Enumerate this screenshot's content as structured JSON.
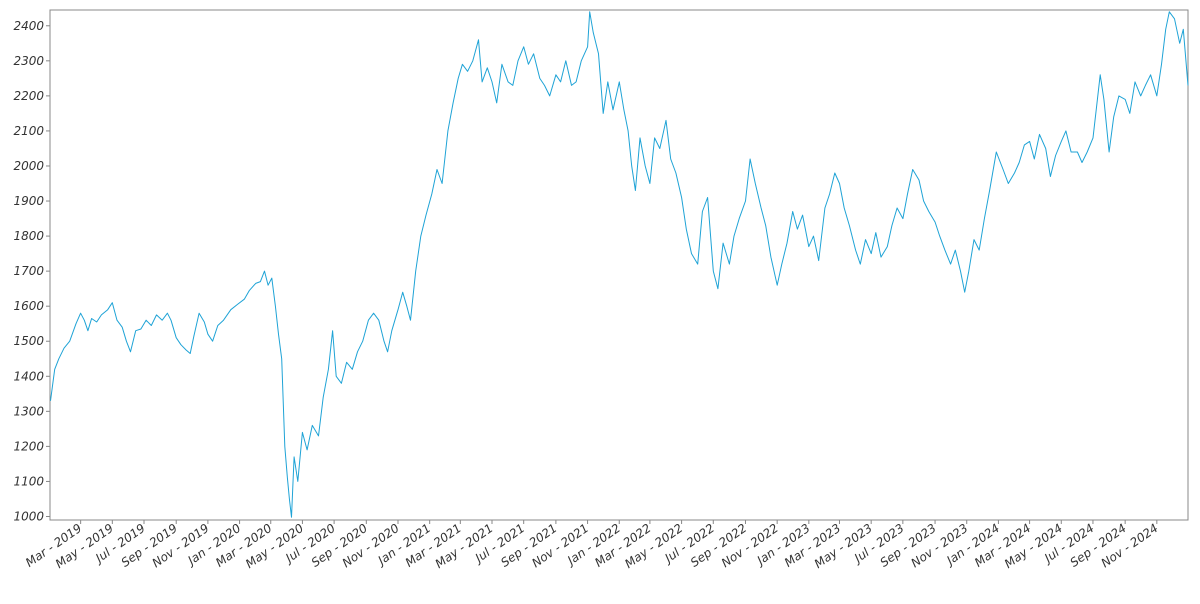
{
  "chart_data": {
    "type": "line",
    "title": "",
    "xlabel": "",
    "ylabel": "",
    "grid": false,
    "legend": "none",
    "colors": {
      "line": "#1fa3d6",
      "axis": "#888888",
      "text": "#333333"
    },
    "ylim": [
      990,
      2445
    ],
    "xlim": [
      "2019-01-01",
      "2024-12-31"
    ],
    "y_ticks": [
      1000,
      1100,
      1200,
      1300,
      1400,
      1500,
      1600,
      1700,
      1800,
      1900,
      2000,
      2100,
      2200,
      2300,
      2400
    ],
    "x_ticks": [
      {
        "date": "2019-03-01",
        "label": "Mar - 2019"
      },
      {
        "date": "2019-05-01",
        "label": "May - 2019"
      },
      {
        "date": "2019-07-01",
        "label": "Jul - 2019"
      },
      {
        "date": "2019-09-01",
        "label": "Sep - 2019"
      },
      {
        "date": "2019-11-01",
        "label": "Nov - 2019"
      },
      {
        "date": "2020-01-01",
        "label": "Jan - 2020"
      },
      {
        "date": "2020-03-01",
        "label": "Mar - 2020"
      },
      {
        "date": "2020-05-01",
        "label": "May - 2020"
      },
      {
        "date": "2020-07-01",
        "label": "Jul - 2020"
      },
      {
        "date": "2020-09-01",
        "label": "Sep - 2020"
      },
      {
        "date": "2020-11-01",
        "label": "Nov - 2020"
      },
      {
        "date": "2021-01-01",
        "label": "Jan - 2021"
      },
      {
        "date": "2021-03-01",
        "label": "Mar - 2021"
      },
      {
        "date": "2021-05-01",
        "label": "May - 2021"
      },
      {
        "date": "2021-07-01",
        "label": "Jul - 2021"
      },
      {
        "date": "2021-09-01",
        "label": "Sep - 2021"
      },
      {
        "date": "2021-11-01",
        "label": "Nov - 2021"
      },
      {
        "date": "2022-01-01",
        "label": "Jan - 2022"
      },
      {
        "date": "2022-03-01",
        "label": "Mar - 2022"
      },
      {
        "date": "2022-05-01",
        "label": "May - 2022"
      },
      {
        "date": "2022-07-01",
        "label": "Jul - 2022"
      },
      {
        "date": "2022-09-01",
        "label": "Sep - 2022"
      },
      {
        "date": "2022-11-01",
        "label": "Nov - 2022"
      },
      {
        "date": "2023-01-01",
        "label": "Jan - 2023"
      },
      {
        "date": "2023-03-01",
        "label": "Mar - 2023"
      },
      {
        "date": "2023-05-01",
        "label": "May - 2023"
      },
      {
        "date": "2023-07-01",
        "label": "Jul - 2023"
      },
      {
        "date": "2023-09-01",
        "label": "Sep - 2023"
      },
      {
        "date": "2023-11-01",
        "label": "Nov - 2023"
      },
      {
        "date": "2024-01-01",
        "label": "Jan - 2024"
      },
      {
        "date": "2024-03-01",
        "label": "Mar - 2024"
      },
      {
        "date": "2024-05-01",
        "label": "May - 2024"
      },
      {
        "date": "2024-07-01",
        "label": "Jul - 2024"
      },
      {
        "date": "2024-09-01",
        "label": "Sep - 2024"
      },
      {
        "date": "2024-11-01",
        "label": "Nov - 2024"
      }
    ],
    "series": [
      {
        "points": [
          [
            "2019-01-02",
            1330
          ],
          [
            "2019-01-10",
            1420
          ],
          [
            "2019-01-18",
            1450
          ],
          [
            "2019-01-28",
            1480
          ],
          [
            "2019-02-08",
            1500
          ],
          [
            "2019-02-20",
            1550
          ],
          [
            "2019-03-01",
            1580
          ],
          [
            "2019-03-08",
            1560
          ],
          [
            "2019-03-15",
            1530
          ],
          [
            "2019-03-22",
            1565
          ],
          [
            "2019-04-01",
            1555
          ],
          [
            "2019-04-10",
            1575
          ],
          [
            "2019-04-22",
            1590
          ],
          [
            "2019-05-01",
            1610
          ],
          [
            "2019-05-10",
            1560
          ],
          [
            "2019-05-20",
            1540
          ],
          [
            "2019-05-28",
            1500
          ],
          [
            "2019-06-05",
            1470
          ],
          [
            "2019-06-15",
            1530
          ],
          [
            "2019-06-25",
            1535
          ],
          [
            "2019-07-05",
            1560
          ],
          [
            "2019-07-15",
            1545
          ],
          [
            "2019-07-25",
            1575
          ],
          [
            "2019-08-05",
            1560
          ],
          [
            "2019-08-15",
            1580
          ],
          [
            "2019-08-22",
            1560
          ],
          [
            "2019-09-01",
            1510
          ],
          [
            "2019-09-10",
            1490
          ],
          [
            "2019-09-20",
            1475
          ],
          [
            "2019-09-28",
            1465
          ],
          [
            "2019-10-05",
            1515
          ],
          [
            "2019-10-15",
            1580
          ],
          [
            "2019-10-25",
            1555
          ],
          [
            "2019-11-01",
            1520
          ],
          [
            "2019-11-10",
            1500
          ],
          [
            "2019-11-20",
            1545
          ],
          [
            "2019-12-01",
            1560
          ],
          [
            "2019-12-15",
            1590
          ],
          [
            "2019-12-28",
            1605
          ],
          [
            "2020-01-10",
            1620
          ],
          [
            "2020-01-20",
            1645
          ],
          [
            "2020-02-01",
            1665
          ],
          [
            "2020-02-10",
            1670
          ],
          [
            "2020-02-18",
            1700
          ],
          [
            "2020-02-25",
            1660
          ],
          [
            "2020-03-03",
            1680
          ],
          [
            "2020-03-10",
            1600
          ],
          [
            "2020-03-16",
            1520
          ],
          [
            "2020-03-22",
            1450
          ],
          [
            "2020-03-28",
            1200
          ],
          [
            "2020-04-02",
            1110
          ],
          [
            "2020-04-06",
            1050
          ],
          [
            "2020-04-10",
            998
          ],
          [
            "2020-04-15",
            1170
          ],
          [
            "2020-04-22",
            1100
          ],
          [
            "2020-05-01",
            1240
          ],
          [
            "2020-05-10",
            1190
          ],
          [
            "2020-05-20",
            1260
          ],
          [
            "2020-06-01",
            1230
          ],
          [
            "2020-06-10",
            1340
          ],
          [
            "2020-06-20",
            1420
          ],
          [
            "2020-06-28",
            1530
          ],
          [
            "2020-07-05",
            1400
          ],
          [
            "2020-07-15",
            1380
          ],
          [
            "2020-07-25",
            1440
          ],
          [
            "2020-08-05",
            1420
          ],
          [
            "2020-08-15",
            1470
          ],
          [
            "2020-08-25",
            1500
          ],
          [
            "2020-09-05",
            1560
          ],
          [
            "2020-09-15",
            1580
          ],
          [
            "2020-09-25",
            1560
          ],
          [
            "2020-10-05",
            1500
          ],
          [
            "2020-10-12",
            1470
          ],
          [
            "2020-10-20",
            1530
          ],
          [
            "2020-11-01",
            1590
          ],
          [
            "2020-11-10",
            1640
          ],
          [
            "2020-11-18",
            1600
          ],
          [
            "2020-11-25",
            1560
          ],
          [
            "2020-12-05",
            1700
          ],
          [
            "2020-12-15",
            1800
          ],
          [
            "2020-12-25",
            1860
          ],
          [
            "2021-01-05",
            1920
          ],
          [
            "2021-01-15",
            1990
          ],
          [
            "2021-01-25",
            1950
          ],
          [
            "2021-02-05",
            2100
          ],
          [
            "2021-02-15",
            2180
          ],
          [
            "2021-02-25",
            2250
          ],
          [
            "2021-03-05",
            2290
          ],
          [
            "2021-03-15",
            2270
          ],
          [
            "2021-03-25",
            2300
          ],
          [
            "2021-04-05",
            2360
          ],
          [
            "2021-04-12",
            2240
          ],
          [
            "2021-04-22",
            2280
          ],
          [
            "2021-05-01",
            2240
          ],
          [
            "2021-05-10",
            2180
          ],
          [
            "2021-05-20",
            2290
          ],
          [
            "2021-06-01",
            2240
          ],
          [
            "2021-06-10",
            2230
          ],
          [
            "2021-06-20",
            2300
          ],
          [
            "2021-07-01",
            2340
          ],
          [
            "2021-07-10",
            2290
          ],
          [
            "2021-07-20",
            2320
          ],
          [
            "2021-08-01",
            2250
          ],
          [
            "2021-08-10",
            2230
          ],
          [
            "2021-08-20",
            2200
          ],
          [
            "2021-09-01",
            2260
          ],
          [
            "2021-09-10",
            2240
          ],
          [
            "2021-09-20",
            2300
          ],
          [
            "2021-10-01",
            2230
          ],
          [
            "2021-10-10",
            2240
          ],
          [
            "2021-10-20",
            2300
          ],
          [
            "2021-11-01",
            2340
          ],
          [
            "2021-11-05",
            2440
          ],
          [
            "2021-11-12",
            2380
          ],
          [
            "2021-11-22",
            2320
          ],
          [
            "2021-12-01",
            2150
          ],
          [
            "2021-12-10",
            2240
          ],
          [
            "2021-12-20",
            2160
          ],
          [
            "2022-01-01",
            2240
          ],
          [
            "2022-01-10",
            2160
          ],
          [
            "2022-01-18",
            2100
          ],
          [
            "2022-01-25",
            2000
          ],
          [
            "2022-02-01",
            1930
          ],
          [
            "2022-02-10",
            2080
          ],
          [
            "2022-02-20",
            2000
          ],
          [
            "2022-03-01",
            1950
          ],
          [
            "2022-03-10",
            2080
          ],
          [
            "2022-03-20",
            2050
          ],
          [
            "2022-04-01",
            2130
          ],
          [
            "2022-04-10",
            2020
          ],
          [
            "2022-04-20",
            1980
          ],
          [
            "2022-05-01",
            1910
          ],
          [
            "2022-05-10",
            1820
          ],
          [
            "2022-05-20",
            1750
          ],
          [
            "2022-06-01",
            1720
          ],
          [
            "2022-06-10",
            1870
          ],
          [
            "2022-06-20",
            1910
          ],
          [
            "2022-07-01",
            1700
          ],
          [
            "2022-07-10",
            1650
          ],
          [
            "2022-07-20",
            1780
          ],
          [
            "2022-08-01",
            1720
          ],
          [
            "2022-08-10",
            1800
          ],
          [
            "2022-08-20",
            1850
          ],
          [
            "2022-09-01",
            1900
          ],
          [
            "2022-09-10",
            2020
          ],
          [
            "2022-09-20",
            1950
          ],
          [
            "2022-10-01",
            1880
          ],
          [
            "2022-10-10",
            1830
          ],
          [
            "2022-10-20",
            1740
          ],
          [
            "2022-11-01",
            1660
          ],
          [
            "2022-11-10",
            1720
          ],
          [
            "2022-11-20",
            1780
          ],
          [
            "2022-12-01",
            1870
          ],
          [
            "2022-12-10",
            1820
          ],
          [
            "2022-12-20",
            1860
          ],
          [
            "2023-01-01",
            1770
          ],
          [
            "2023-01-10",
            1800
          ],
          [
            "2023-01-20",
            1730
          ],
          [
            "2023-02-01",
            1880
          ],
          [
            "2023-02-10",
            1920
          ],
          [
            "2023-02-20",
            1980
          ],
          [
            "2023-03-01",
            1950
          ],
          [
            "2023-03-10",
            1880
          ],
          [
            "2023-03-20",
            1830
          ],
          [
            "2023-04-01",
            1760
          ],
          [
            "2023-04-10",
            1720
          ],
          [
            "2023-04-20",
            1790
          ],
          [
            "2023-05-01",
            1750
          ],
          [
            "2023-05-10",
            1810
          ],
          [
            "2023-05-20",
            1740
          ],
          [
            "2023-06-01",
            1770
          ],
          [
            "2023-06-10",
            1830
          ],
          [
            "2023-06-20",
            1880
          ],
          [
            "2023-07-01",
            1850
          ],
          [
            "2023-07-10",
            1920
          ],
          [
            "2023-07-20",
            1990
          ],
          [
            "2023-08-01",
            1960
          ],
          [
            "2023-08-10",
            1900
          ],
          [
            "2023-08-20",
            1870
          ],
          [
            "2023-09-01",
            1840
          ],
          [
            "2023-09-10",
            1800
          ],
          [
            "2023-09-20",
            1760
          ],
          [
            "2023-10-01",
            1720
          ],
          [
            "2023-10-10",
            1760
          ],
          [
            "2023-10-20",
            1700
          ],
          [
            "2023-10-28",
            1640
          ],
          [
            "2023-11-05",
            1700
          ],
          [
            "2023-11-15",
            1790
          ],
          [
            "2023-11-25",
            1760
          ],
          [
            "2023-12-05",
            1850
          ],
          [
            "2023-12-15",
            1930
          ],
          [
            "2023-12-28",
            2040
          ],
          [
            "2024-01-10",
            1990
          ],
          [
            "2024-01-20",
            1950
          ],
          [
            "2024-02-01",
            1980
          ],
          [
            "2024-02-10",
            2010
          ],
          [
            "2024-02-20",
            2060
          ],
          [
            "2024-03-01",
            2070
          ],
          [
            "2024-03-10",
            2020
          ],
          [
            "2024-03-20",
            2090
          ],
          [
            "2024-04-01",
            2050
          ],
          [
            "2024-04-10",
            1970
          ],
          [
            "2024-04-20",
            2030
          ],
          [
            "2024-05-01",
            2070
          ],
          [
            "2024-05-10",
            2100
          ],
          [
            "2024-05-20",
            2040
          ],
          [
            "2024-06-01",
            2040
          ],
          [
            "2024-06-10",
            2010
          ],
          [
            "2024-06-20",
            2040
          ],
          [
            "2024-07-01",
            2080
          ],
          [
            "2024-07-08",
            2170
          ],
          [
            "2024-07-15",
            2260
          ],
          [
            "2024-07-22",
            2190
          ],
          [
            "2024-08-01",
            2040
          ],
          [
            "2024-08-10",
            2140
          ],
          [
            "2024-08-20",
            2200
          ],
          [
            "2024-09-01",
            2190
          ],
          [
            "2024-09-10",
            2150
          ],
          [
            "2024-09-20",
            2240
          ],
          [
            "2024-10-01",
            2200
          ],
          [
            "2024-10-10",
            2230
          ],
          [
            "2024-10-20",
            2260
          ],
          [
            "2024-11-01",
            2200
          ],
          [
            "2024-11-10",
            2290
          ],
          [
            "2024-11-18",
            2390
          ],
          [
            "2024-11-25",
            2440
          ],
          [
            "2024-12-05",
            2420
          ],
          [
            "2024-12-15",
            2350
          ],
          [
            "2024-12-22",
            2390
          ],
          [
            "2024-12-31",
            2230
          ]
        ]
      }
    ]
  }
}
